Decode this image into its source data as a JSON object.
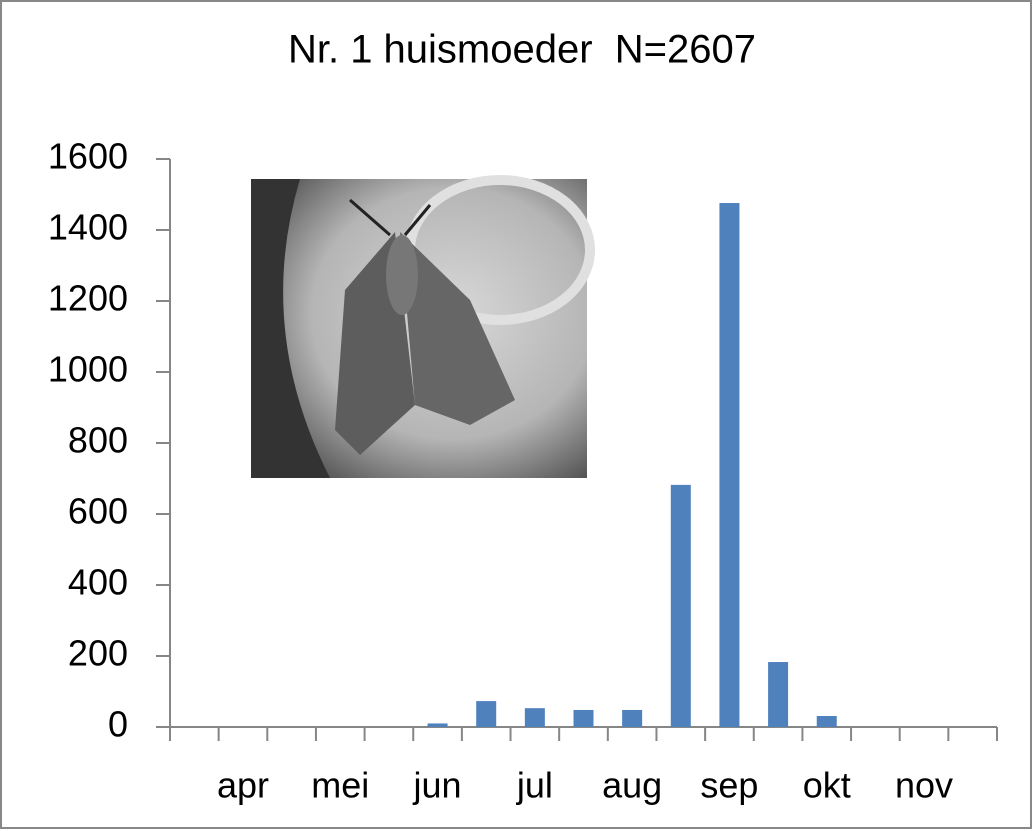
{
  "chart_data": {
    "type": "bar",
    "title": "Nr. 1 huismoeder  N=2607",
    "categories": [
      null,
      "apr",
      null,
      "mei",
      null,
      "jun",
      null,
      "jul",
      null,
      "aug",
      null,
      "sep",
      null,
      "okt",
      null,
      "nov",
      null
    ],
    "values": [
      0,
      0,
      0,
      0,
      0,
      10,
      73,
      53,
      48,
      48,
      682,
      1476,
      183,
      31,
      0,
      0,
      0
    ],
    "color": "#4f81bd",
    "ylim": [
      0,
      1600
    ],
    "yticks": [
      0,
      200,
      400,
      600,
      800,
      1000,
      1200,
      1400,
      1600
    ],
    "grid": false
  }
}
